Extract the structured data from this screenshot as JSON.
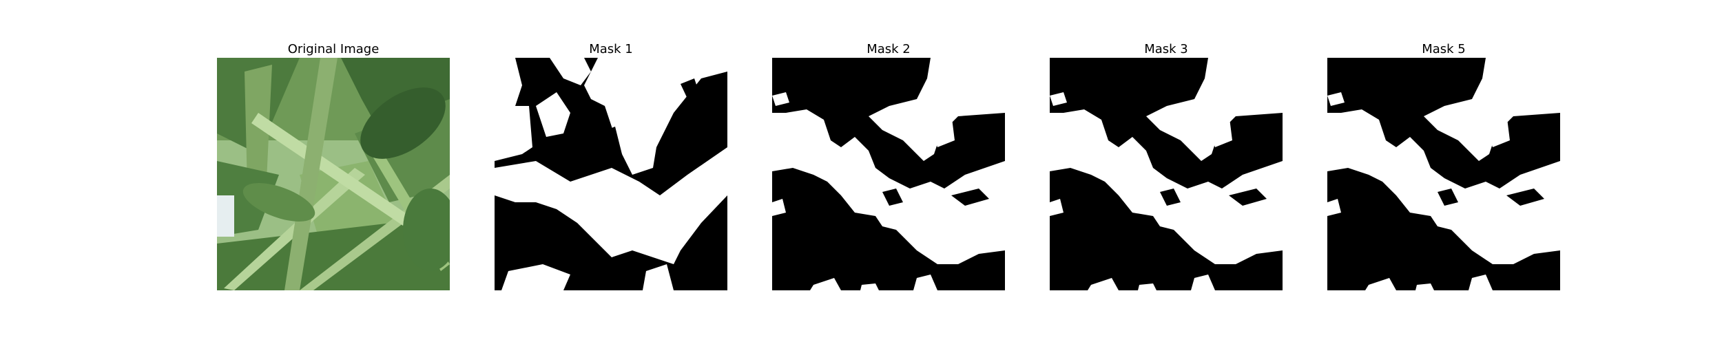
{
  "panels": [
    {
      "title": "Original Image",
      "kind": "photo"
    },
    {
      "title": "Mask 1",
      "kind": "mask"
    },
    {
      "title": "Mask 2",
      "kind": "mask"
    },
    {
      "title": "Mask 3",
      "kind": "mask"
    },
    {
      "title": "Mask 5",
      "kind": "mask"
    }
  ],
  "colors": {
    "background": "#ffffff",
    "mask_foreground": "#ffffff",
    "mask_background": "#000000",
    "leaf_dark": "#3f6b34",
    "leaf_mid": "#6f9a57",
    "leaf_light": "#a9c98c"
  }
}
